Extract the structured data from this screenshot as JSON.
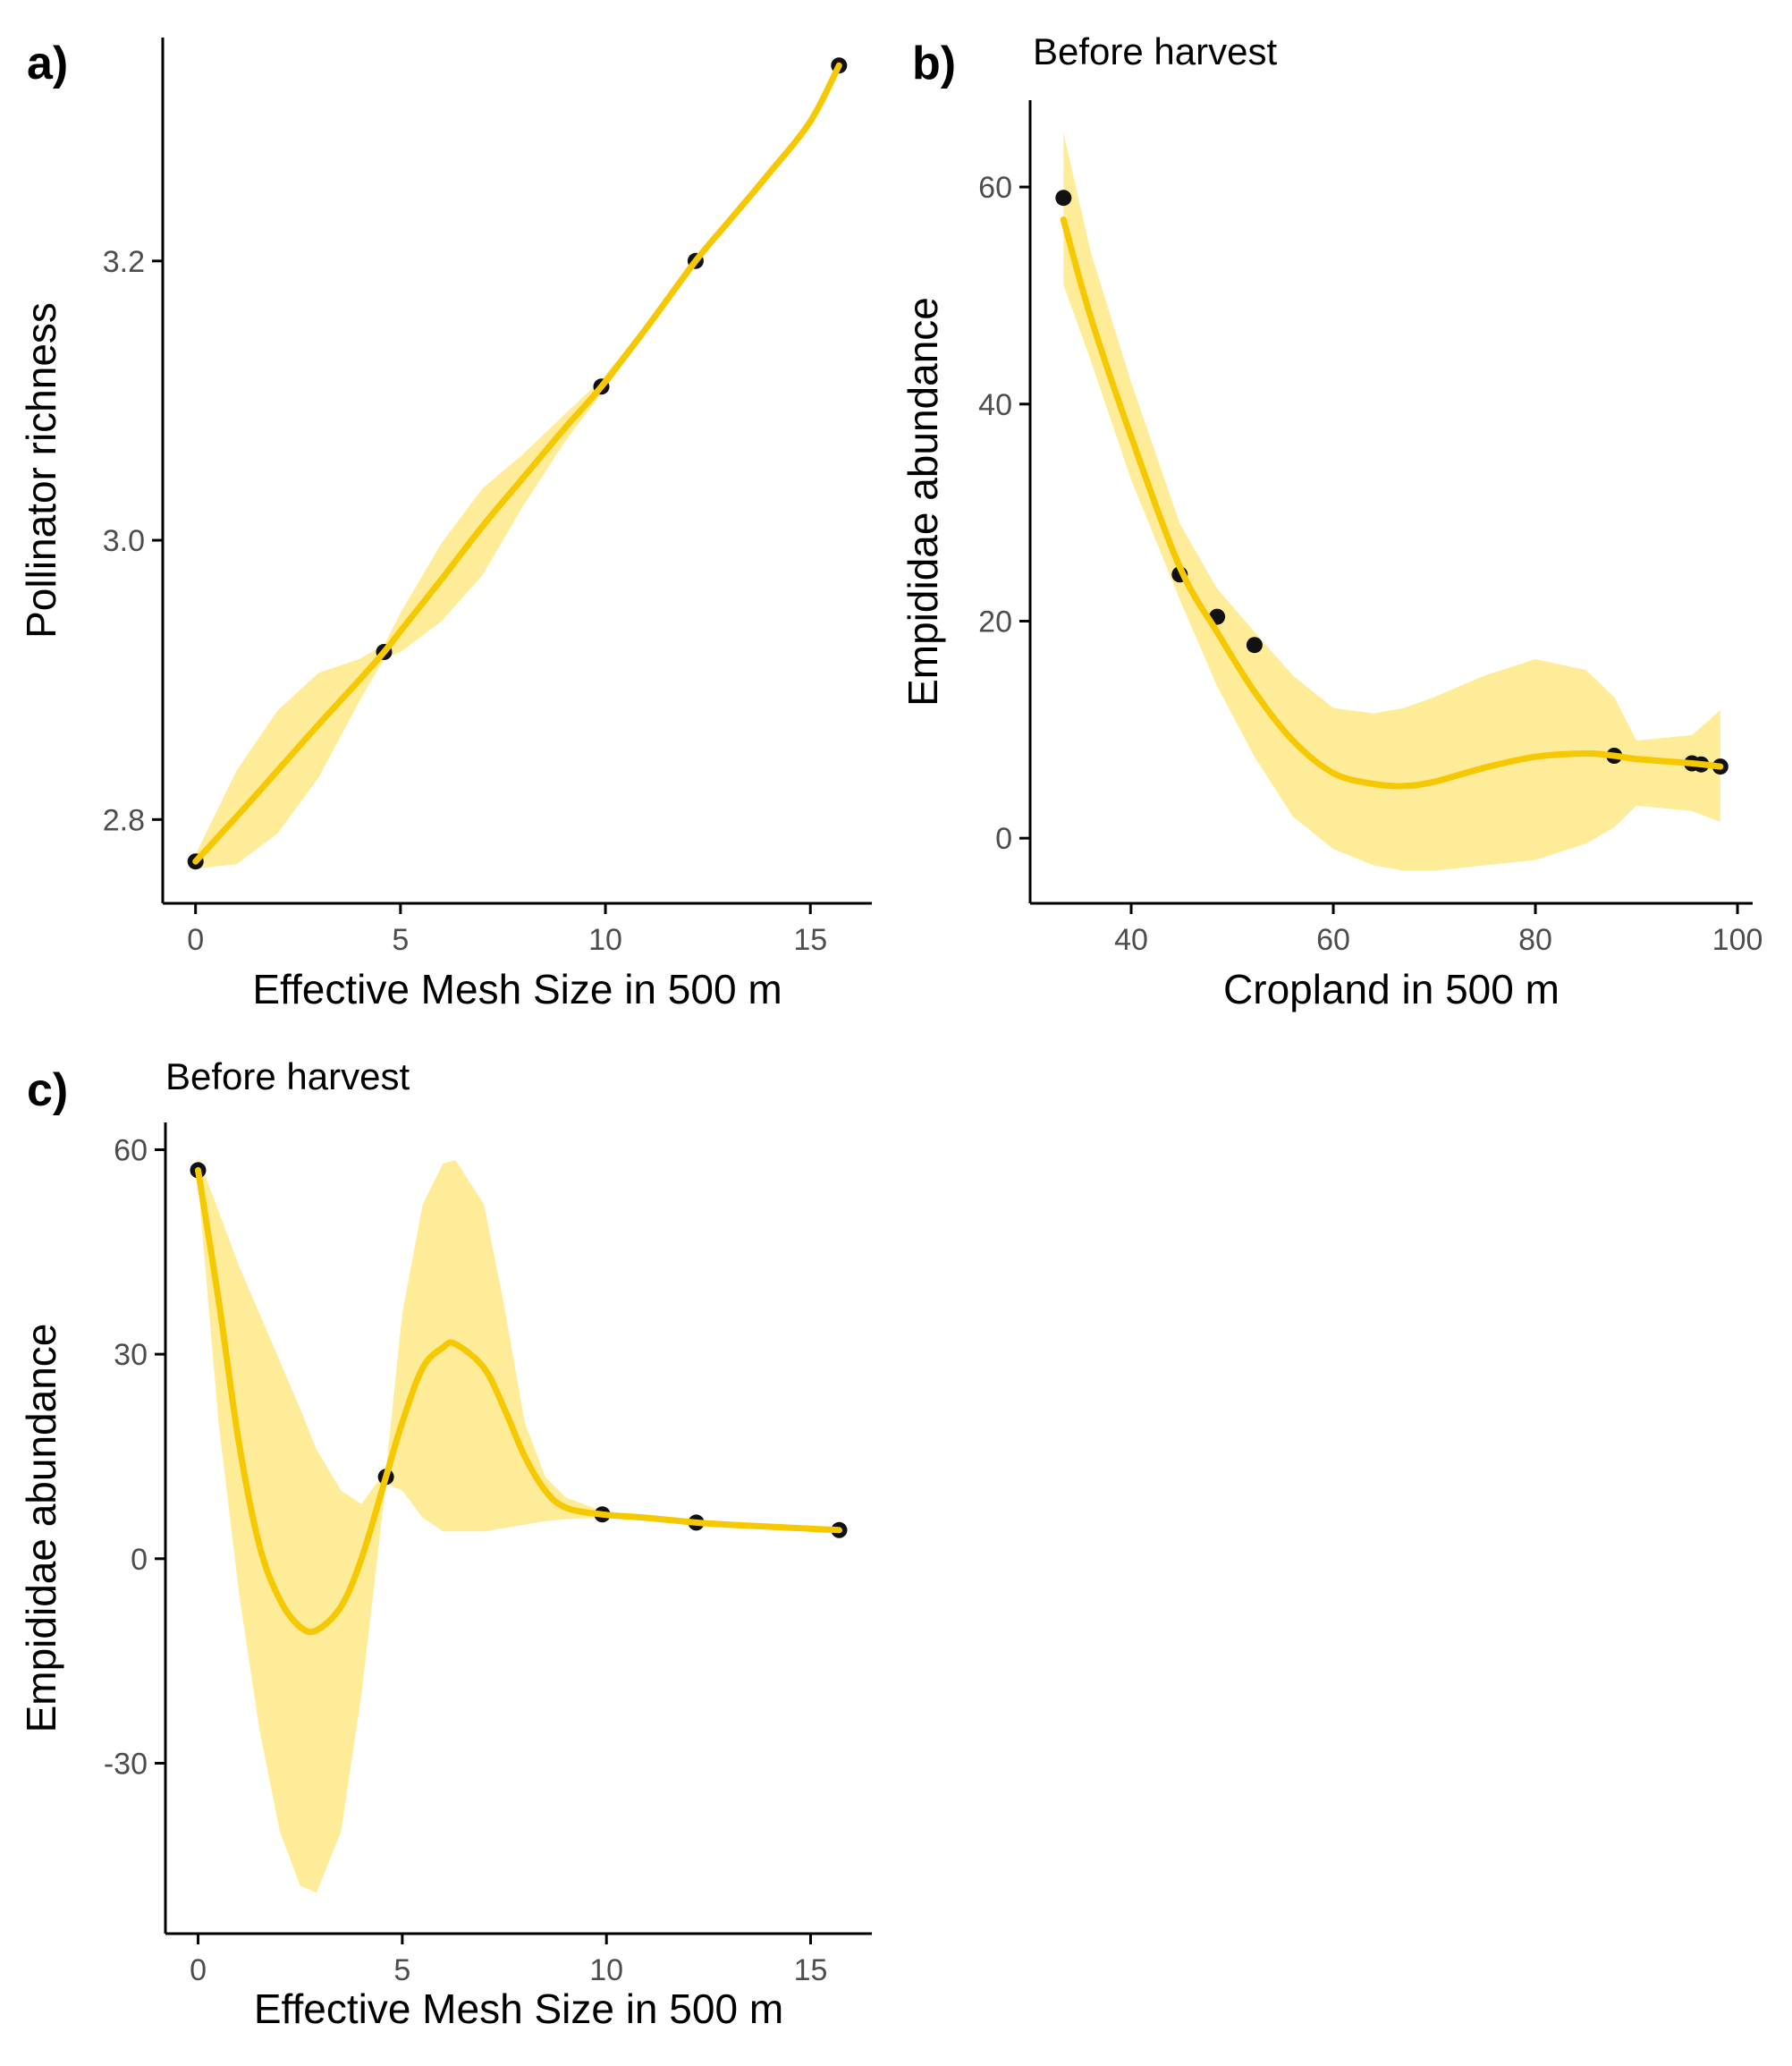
{
  "colors": {
    "line": "#F5C800",
    "band": "#FFEC99",
    "points": "#111111",
    "axis": "#000000"
  },
  "chart_data": [
    {
      "type": "line",
      "panel_label": "a)",
      "subtitle": "",
      "xlabel": "Effective Mesh Size in 500 m",
      "ylabel": "Pollinator richness",
      "xlim": [
        -0.8,
        16.5
      ],
      "ylim": [
        2.74,
        3.36
      ],
      "xticks": [
        0,
        5,
        10,
        15
      ],
      "xtick_labels": [
        "0",
        "5",
        "10",
        "15"
      ],
      "yticks": [
        2.8,
        3.0,
        3.2
      ],
      "ytick_labels": [
        "2.8",
        "3.0",
        "3.2"
      ],
      "grid": false,
      "points": {
        "x": [
          0,
          4.6,
          9.9,
          12.2,
          15.7
        ],
        "y": [
          2.77,
          2.92,
          3.11,
          3.2,
          3.34
        ]
      },
      "fit": {
        "x": [
          0,
          1,
          2,
          3,
          4,
          4.6,
          5,
          6,
          7,
          8,
          9,
          9.9,
          11,
          12.2,
          13,
          14,
          15,
          15.7
        ],
        "y": [
          2.77,
          2.802,
          2.835,
          2.868,
          2.9,
          2.92,
          2.935,
          2.972,
          3.01,
          3.045,
          3.08,
          3.11,
          3.152,
          3.2,
          3.228,
          3.263,
          3.3,
          3.34
        ],
        "lower": [
          2.765,
          2.768,
          2.79,
          2.83,
          2.885,
          2.915,
          2.92,
          2.942,
          2.975,
          3.025,
          3.07,
          3.105,
          3.149,
          3.197,
          3.226,
          3.261,
          3.298,
          3.337
        ],
        "upper": [
          2.775,
          2.835,
          2.878,
          2.905,
          2.915,
          2.925,
          2.948,
          2.998,
          3.037,
          3.062,
          3.09,
          3.115,
          3.155,
          3.203,
          3.23,
          3.265,
          3.302,
          3.343
        ]
      }
    },
    {
      "type": "line",
      "panel_label": "b)",
      "subtitle": "Before harvest",
      "xlabel": "Cropland in 500 m",
      "ylabel": "Empididae abundance",
      "xlim": [
        30,
        101.5
      ],
      "ylim": [
        -6,
        68
      ],
      "xticks": [
        40,
        60,
        80,
        100
      ],
      "xtick_labels": [
        "40",
        "60",
        "80",
        "100"
      ],
      "yticks": [
        0,
        20,
        40,
        60
      ],
      "ytick_labels": [
        "0",
        "20",
        "40",
        "60"
      ],
      "grid": false,
      "points": {
        "x": [
          33.3,
          44.8,
          48.5,
          52.2,
          87.8,
          95.5,
          96.4,
          98.3
        ],
        "y": [
          59,
          24.3,
          20.4,
          17.8,
          7.6,
          6.9,
          6.8,
          6.6
        ]
      },
      "fit": {
        "x": [
          33.3,
          36,
          40,
          44.8,
          48.5,
          52.2,
          56,
          60,
          64,
          67,
          70,
          75,
          80,
          85,
          87.8,
          90,
          95.5,
          98.3
        ],
        "y": [
          57,
          48,
          37,
          25,
          19,
          13.5,
          9,
          6,
          5,
          4.8,
          5.2,
          6.5,
          7.5,
          7.8,
          7.6,
          7.3,
          6.9,
          6.6
        ],
        "lower": [
          51,
          44,
          33,
          22,
          14,
          7.5,
          2,
          -1,
          -2.5,
          -3,
          -3,
          -2.5,
          -2,
          -0.5,
          1,
          3,
          2.5,
          1.5
        ],
        "upper": [
          65,
          54,
          42,
          29,
          23,
          19,
          15,
          12,
          11.5,
          12,
          13,
          15,
          16.5,
          15.5,
          13,
          9,
          9.5,
          11.8
        ]
      }
    },
    {
      "type": "line",
      "panel_label": "c)",
      "subtitle": "Before harvest",
      "xlabel": "Effective Mesh Size in 500 m",
      "ylabel": "Empididae abundance",
      "xlim": [
        -0.8,
        16.5
      ],
      "ylim": [
        -55,
        64
      ],
      "xticks": [
        0,
        5,
        10,
        15
      ],
      "xtick_labels": [
        "0",
        "5",
        "10",
        "15"
      ],
      "yticks": [
        -30,
        0,
        30,
        60
      ],
      "ytick_labels": [
        "-30",
        "0",
        "30",
        "60"
      ],
      "grid": false,
      "points": {
        "x": [
          0,
          4.6,
          9.9,
          12.2,
          15.7
        ],
        "y": [
          57,
          12,
          6.5,
          5.3,
          4.2
        ]
      },
      "fit": {
        "x": [
          0,
          0.5,
          1,
          1.5,
          2,
          2.5,
          2.9,
          3.5,
          4,
          4.6,
          5,
          5.5,
          6,
          6.3,
          7,
          7.5,
          8,
          8.5,
          9,
          9.9,
          11,
          12.2,
          13,
          14,
          15,
          15.7
        ],
        "y": [
          57,
          38,
          17,
          2,
          -6,
          -10,
          -10.5,
          -7,
          0,
          12,
          20,
          28,
          31,
          31.5,
          28,
          22,
          15,
          10,
          7.5,
          6.5,
          6,
          5.3,
          5,
          4.7,
          4.4,
          4.2
        ],
        "lower": [
          55,
          20,
          -5,
          -25,
          -40,
          -48,
          -49,
          -40,
          -20,
          11,
          10,
          6,
          4,
          4,
          4,
          4.5,
          5,
          5.5,
          5.8,
          6,
          5.7,
          5,
          4.7,
          4.4,
          4.1,
          3.9
        ],
        "upper": [
          59,
          51,
          43,
          36,
          29,
          22,
          16,
          10,
          8,
          13,
          36,
          52,
          58,
          58.5,
          52,
          37,
          20,
          12,
          9,
          7,
          6.3,
          5.6,
          5.3,
          5,
          4.7,
          4.5
        ]
      }
    }
  ]
}
